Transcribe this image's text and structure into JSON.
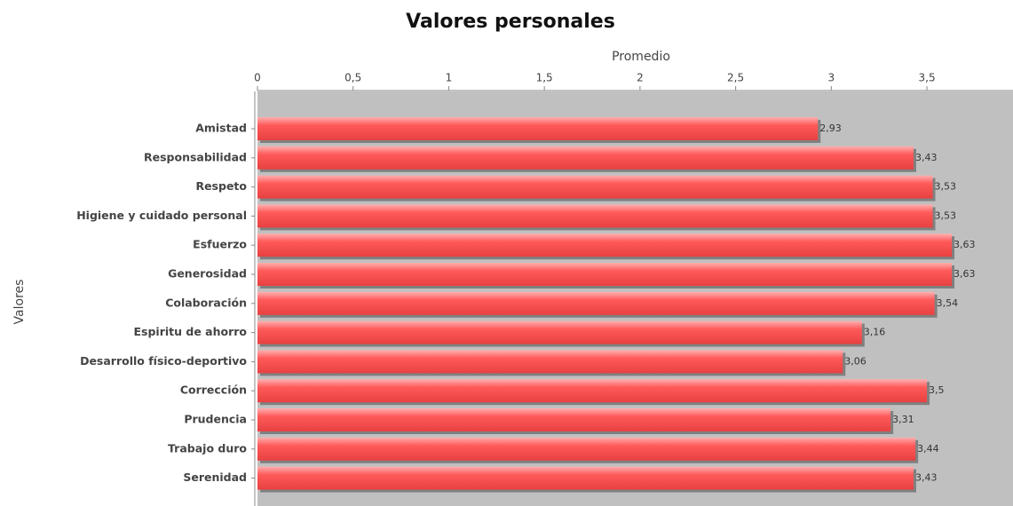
{
  "chart_data": {
    "type": "bar",
    "orientation": "horizontal",
    "title": "Valores personales",
    "x_label": "Promedio",
    "y_label": "Valores",
    "categories": [
      "Amistad",
      "Responsabilidad",
      "Respeto",
      "Higiene y cuidado personal",
      "Esfuerzo",
      "Generosidad",
      "Colaboración",
      "Espiritu de ahorro",
      "Desarrollo físico-deportivo",
      "Corrección",
      "Prudencia",
      "Trabajo duro",
      "Serenidad"
    ],
    "values": [
      2.93,
      3.43,
      3.53,
      3.53,
      3.63,
      3.63,
      3.54,
      3.16,
      3.06,
      3.5,
      3.31,
      3.44,
      3.43
    ],
    "value_labels": [
      "2,93",
      "3,43",
      "3,53",
      "3,53",
      "3,63",
      "3,63",
      "3,54",
      "3,16",
      "3,06",
      "3,5",
      "3,31",
      "3,44",
      "3,43"
    ],
    "color": "#ff5a5a",
    "xlim": [
      0,
      3.95
    ],
    "xticks": [
      0,
      {
        "value": 0.5,
        "label": "0,5"
      },
      1,
      {
        "value": 1.5,
        "label": "1,5"
      },
      2,
      {
        "value": 2.5,
        "label": "2,5"
      },
      3,
      {
        "value": 3.5,
        "label": "3,5"
      }
    ]
  }
}
